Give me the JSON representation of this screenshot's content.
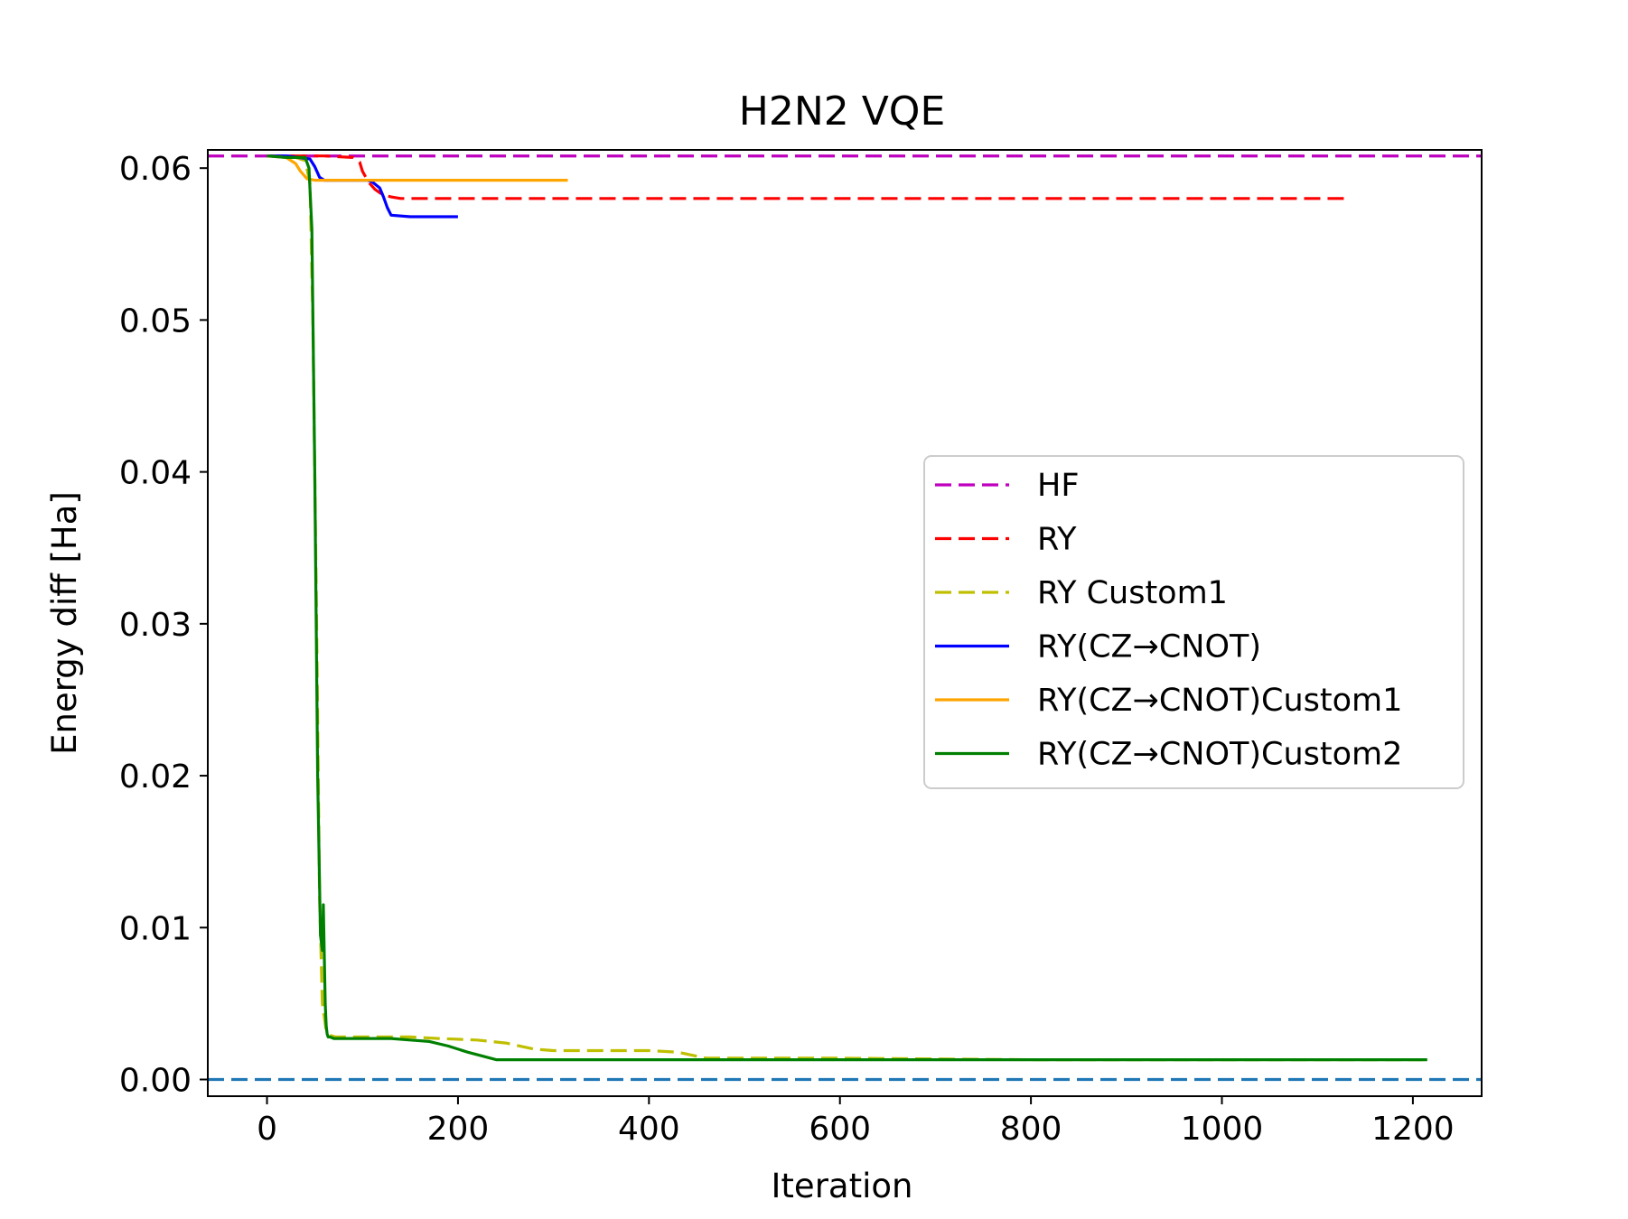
{
  "chart_data": {
    "type": "line",
    "title": "H2N2 VQE",
    "xlabel": "Iteration",
    "ylabel": "Energy diff [Ha]",
    "xlim": [
      -62,
      1272
    ],
    "ylim": [
      -0.0011,
      0.0612
    ],
    "xticks": [
      0,
      200,
      400,
      600,
      800,
      1000,
      1200
    ],
    "xtick_labels": [
      "0",
      "200",
      "400",
      "600",
      "800",
      "1000",
      "1200"
    ],
    "yticks": [
      0.0,
      0.01,
      0.02,
      0.03,
      0.04,
      0.05,
      0.06
    ],
    "ytick_labels": [
      "0.00",
      "0.01",
      "0.02",
      "0.03",
      "0.04",
      "0.05",
      "0.06"
    ],
    "grid": false,
    "legend_position": "center-right",
    "hlines": [
      {
        "name": "HF",
        "y": 0.0608,
        "color": "#bf00bf",
        "dash": "dashed",
        "in_legend": true
      },
      {
        "name": "exact",
        "y": 0.0,
        "color": "#1f77b4",
        "dash": "dashed",
        "in_legend": false
      }
    ],
    "series": [
      {
        "name": "RY",
        "color": "#ff0000",
        "dash": "dashed",
        "x": [
          0,
          30,
          60,
          90,
          97,
          100,
          106,
          113,
          120,
          130,
          140,
          300,
          600,
          900,
          1130
        ],
        "y": [
          0.0608,
          0.0608,
          0.0608,
          0.0607,
          0.0604,
          0.0598,
          0.0591,
          0.0586,
          0.0583,
          0.0581,
          0.058,
          0.058,
          0.058,
          0.058,
          0.058
        ]
      },
      {
        "name": "RY Custom1",
        "color": "#bfbf00",
        "dash": "dashed",
        "x": [
          0,
          30,
          40,
          45,
          48,
          52,
          55,
          58,
          62,
          66,
          72,
          90,
          120,
          150,
          180,
          220,
          250,
          280,
          300,
          350,
          400,
          430,
          460,
          500,
          600,
          800,
          1000,
          1210
        ],
        "y": [
          0.0608,
          0.0607,
          0.0605,
          0.059,
          0.05,
          0.03,
          0.012,
          0.005,
          0.0032,
          0.0029,
          0.0028,
          0.0028,
          0.0028,
          0.0028,
          0.0027,
          0.0026,
          0.0024,
          0.002,
          0.0019,
          0.0019,
          0.0019,
          0.0018,
          0.0014,
          0.0014,
          0.0014,
          0.0013,
          0.0013,
          0.0013
        ]
      },
      {
        "name": "RY(CZ→CNOT)",
        "color": "#0000ff",
        "dash": "solid",
        "x": [
          0,
          20,
          45,
          50,
          55,
          60,
          90,
          105,
          110,
          118,
          122,
          126,
          130,
          150,
          170,
          200
        ],
        "y": [
          0.0608,
          0.0608,
          0.0606,
          0.0601,
          0.0594,
          0.0592,
          0.0592,
          0.0592,
          0.0591,
          0.0587,
          0.0581,
          0.0574,
          0.0569,
          0.0568,
          0.0568,
          0.0568
        ]
      },
      {
        "name": "RY(CZ→CNOT)Custom1",
        "color": "#ffa500",
        "dash": "solid",
        "x": [
          0,
          20,
          30,
          35,
          42,
          50,
          100,
          200,
          250,
          315
        ],
        "y": [
          0.0608,
          0.0607,
          0.0603,
          0.0598,
          0.0593,
          0.0592,
          0.0592,
          0.0592,
          0.0592,
          0.0592
        ]
      },
      {
        "name": "RY(CZ→CNOT)Custom2",
        "color": "#008000",
        "dash": "solid",
        "x": [
          0,
          20,
          40,
          44,
          47,
          50,
          53,
          56,
          58,
          59,
          60,
          61,
          62,
          63,
          64,
          66,
          70,
          80,
          100,
          130,
          150,
          170,
          190,
          210,
          240,
          300,
          400,
          600,
          800,
          1000,
          1215
        ],
        "y": [
          0.0608,
          0.0607,
          0.0607,
          0.06,
          0.056,
          0.04,
          0.02,
          0.0095,
          0.0085,
          0.0115,
          0.008,
          0.005,
          0.0035,
          0.003,
          0.0028,
          0.0028,
          0.0027,
          0.0027,
          0.0027,
          0.0027,
          0.0026,
          0.0025,
          0.0022,
          0.0018,
          0.0013,
          0.0013,
          0.0013,
          0.0013,
          0.0013,
          0.0013,
          0.0013
        ]
      }
    ],
    "legend_entries": [
      {
        "name": "HF",
        "color": "#bf00bf",
        "dash": "dashed"
      },
      {
        "name": "RY",
        "color": "#ff0000",
        "dash": "dashed"
      },
      {
        "name": "RY Custom1",
        "color": "#bfbf00",
        "dash": "dashed"
      },
      {
        "name": "RY(CZ→CNOT)",
        "color": "#0000ff",
        "dash": "solid"
      },
      {
        "name": "RY(CZ→CNOT)Custom1",
        "color": "#ffa500",
        "dash": "solid"
      },
      {
        "name": "RY(CZ→CNOT)Custom2",
        "color": "#008000",
        "dash": "solid"
      }
    ]
  }
}
